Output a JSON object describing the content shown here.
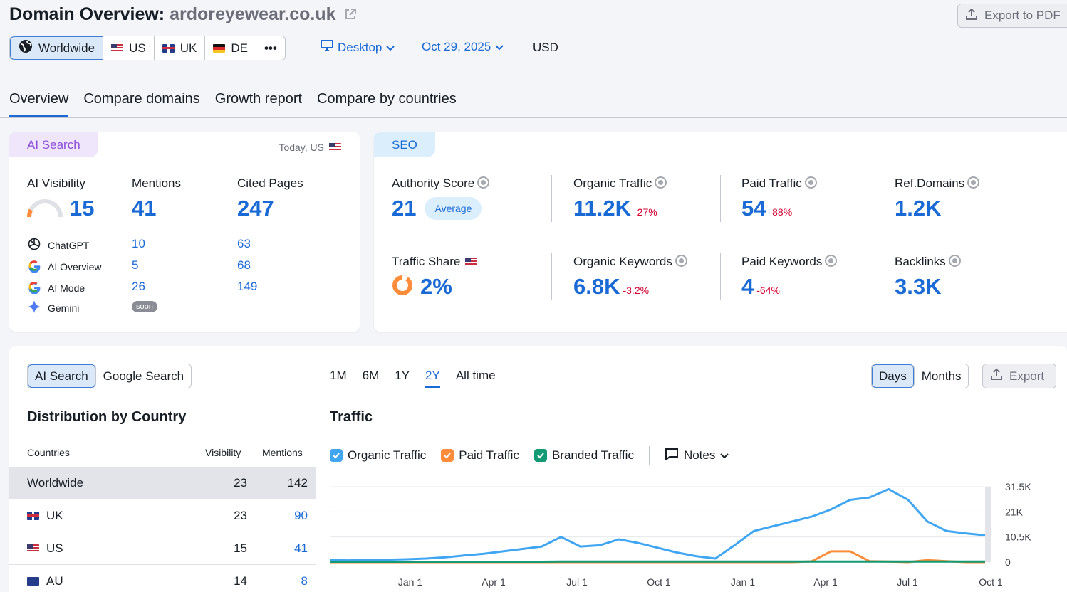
{
  "header": {
    "title_prefix": "Domain Overview:",
    "domain": "ardoreyewear.co.uk",
    "export_pdf_label": "Export to PDF"
  },
  "regions": [
    {
      "label": "Worldwide",
      "flag": "globe-icon",
      "active": true
    },
    {
      "label": "US",
      "flag": "us-flag-icon"
    },
    {
      "label": "UK",
      "flag": "uk-flag-icon"
    },
    {
      "label": "DE",
      "flag": "de-flag-icon"
    },
    {
      "label": "•••",
      "flag": "more-icon"
    }
  ],
  "filters": {
    "device": "Desktop",
    "date": "Oct 29, 2025",
    "currency": "USD"
  },
  "tabs": [
    "Overview",
    "Compare domains",
    "Growth report",
    "Compare by countries"
  ],
  "ai_card": {
    "tag": "AI Search",
    "today": "Today, US",
    "metrics": [
      {
        "label": "AI Visibility",
        "value": "15"
      },
      {
        "label": "Mentions",
        "value": "41"
      },
      {
        "label": "Cited Pages",
        "value": "247"
      }
    ],
    "visibility_gauge_percent": 15,
    "sources": [
      {
        "name": "ChatGPT",
        "icon": "chatgpt-icon",
        "mentions": "10",
        "cited": "63"
      },
      {
        "name": "AI Overview",
        "icon": "google-icon",
        "mentions": "5",
        "cited": "68"
      },
      {
        "name": "AI Mode",
        "icon": "google-icon",
        "mentions": "26",
        "cited": "149"
      },
      {
        "name": "Gemini",
        "icon": "gemini-icon",
        "badge": "soon"
      }
    ]
  },
  "seo_card": {
    "tag": "SEO",
    "authority": {
      "label": "Authority Score",
      "value": "21",
      "badge": "Average"
    },
    "organic_traffic": {
      "label": "Organic Traffic",
      "value": "11.2K",
      "delta": "-27%"
    },
    "paid_traffic": {
      "label": "Paid Traffic",
      "value": "54",
      "delta": "-88%"
    },
    "ref_domains": {
      "label": "Ref.Domains",
      "value": "1.2K"
    },
    "traffic_share": {
      "label": "Traffic Share",
      "value": "2%"
    },
    "organic_keywords": {
      "label": "Organic Keywords",
      "value": "6.8K",
      "delta": "-3.2%"
    },
    "paid_keywords": {
      "label": "Paid Keywords",
      "value": "4",
      "delta": "-64%"
    },
    "backlinks": {
      "label": "Backlinks",
      "value": "3.3K"
    }
  },
  "distribution": {
    "toggle": [
      "AI Search",
      "Google Search"
    ],
    "title": "Distribution by Country",
    "columns": [
      "Countries",
      "Visibility",
      "Mentions"
    ],
    "rows": [
      {
        "country": "Worldwide",
        "visibility": "23",
        "mentions": "142"
      },
      {
        "country": "UK",
        "flag": "uk-flag-icon",
        "visibility": "23",
        "mentions": "90"
      },
      {
        "country": "US",
        "flag": "us-flag-icon",
        "visibility": "15",
        "mentions": "41"
      },
      {
        "country": "AU",
        "flag": "au-flag-icon",
        "visibility": "14",
        "mentions": "8"
      }
    ]
  },
  "traffic": {
    "ranges": [
      "1M",
      "6M",
      "1Y",
      "2Y",
      "All time"
    ],
    "active_range": "2Y",
    "granularity": [
      "Days",
      "Months"
    ],
    "export_label": "Export",
    "title": "Traffic",
    "legend": [
      {
        "name": "Organic Traffic",
        "color": "#40a6f2"
      },
      {
        "name": "Paid Traffic",
        "color": "#ff8c3a"
      },
      {
        "name": "Branded Traffic",
        "color": "#129a74"
      }
    ],
    "notes_label": "Notes"
  },
  "chart_data": {
    "type": "line",
    "x_labels": [
      "Jan 1",
      "Apr 1",
      "Jul 1",
      "Oct 1",
      "Jan 1",
      "Apr 1",
      "Jul 1",
      "Oct 1"
    ],
    "y_ticks": [
      "31.5K",
      "21K",
      "10.5K",
      "0"
    ],
    "ylim": [
      0,
      31500
    ],
    "series": [
      {
        "name": "Organic Traffic",
        "color": "#40a6f2",
        "values": [
          800,
          700,
          900,
          1000,
          1200,
          1500,
          2000,
          2800,
          3500,
          4500,
          5500,
          6500,
          10500,
          6500,
          7000,
          9500,
          8000,
          6000,
          4000,
          2500,
          1500,
          7000,
          13000,
          15000,
          17000,
          19000,
          22000,
          26000,
          27000,
          30500,
          26000,
          17000,
          13000,
          12000,
          11200
        ]
      },
      {
        "name": "Paid Traffic",
        "color": "#ff8c3a",
        "values": [
          0,
          0,
          0,
          0,
          0,
          0,
          0,
          0,
          0,
          0,
          0,
          0,
          0,
          0,
          0,
          0,
          0,
          0,
          0,
          0,
          0,
          0,
          0,
          0,
          0,
          300,
          4500,
          4500,
          400,
          200,
          0,
          800,
          400,
          0,
          0
        ]
      },
      {
        "name": "Branded Traffic",
        "color": "#129a74",
        "values": [
          150,
          150,
          150,
          150,
          150,
          150,
          150,
          150,
          150,
          150,
          150,
          150,
          200,
          200,
          200,
          200,
          200,
          200,
          200,
          200,
          200,
          200,
          250,
          250,
          250,
          250,
          250,
          250,
          250,
          250,
          250,
          250,
          250,
          250,
          250
        ]
      }
    ]
  }
}
